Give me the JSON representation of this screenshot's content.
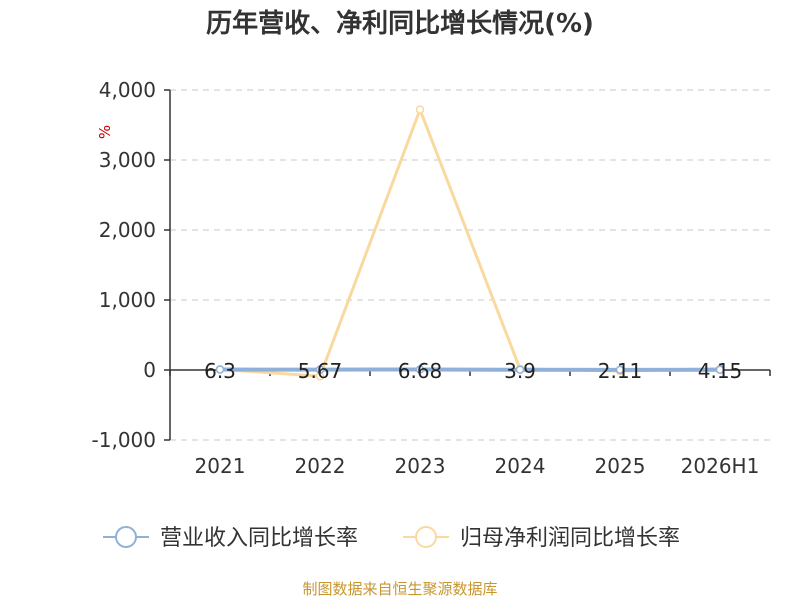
{
  "chart_data": {
    "type": "line",
    "title": "历年营收、净利同比增长情况(%)",
    "unit_label": "%",
    "categories": [
      "2021",
      "2022",
      "2023",
      "2024",
      "2025",
      "2026H1"
    ],
    "ylim": [
      -1000,
      4000
    ],
    "yticks": [
      4000,
      3000,
      2000,
      1000,
      0,
      -1000
    ],
    "ytick_labels": [
      "4,000",
      "3,000",
      "2,000",
      "1,000",
      "0",
      "-1,000"
    ],
    "grid": true,
    "legend_position": "bottom",
    "series": [
      {
        "name": "营业收入同比增长率",
        "values": [
          6.3,
          5.67,
          6.68,
          3.9,
          2.11,
          4.15
        ],
        "labels": [
          "6.3",
          "5.67",
          "6.68",
          "3.9",
          "2.11",
          "4.15"
        ],
        "color": "#8fb0d8"
      },
      {
        "name": "归母净利润同比增长率",
        "values": [
          10,
          -90,
          3720,
          15,
          -15,
          20
        ],
        "color": "#fad9a0"
      }
    ]
  },
  "source": "制图数据来自恒生聚源数据库"
}
